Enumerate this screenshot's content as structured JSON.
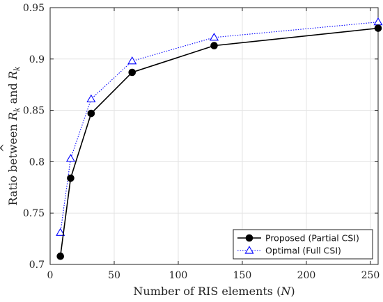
{
  "chart_data": {
    "type": "line",
    "xlabel": "Number of RIS elements (",
    "xlabel_var": "N",
    "xlabel_end": ")",
    "ylabel_parts": [
      "Ratio between ",
      "R",
      "k",
      " and ",
      "R",
      "k"
    ],
    "xlim": [
      0,
      256
    ],
    "ylim": [
      0.7,
      0.95
    ],
    "x_ticks": [
      0,
      50,
      100,
      150,
      200,
      250
    ],
    "y_ticks": [
      0.7,
      0.75,
      0.8,
      0.85,
      0.9,
      0.95
    ],
    "x_tick_labels": [
      "0",
      "50",
      "100",
      "150",
      "200",
      "250"
    ],
    "y_tick_labels": [
      "0.7",
      "0.75",
      "0.8",
      "0.85",
      "0.9",
      "0.95"
    ],
    "grid": true,
    "legend_position": "bottom-right",
    "series": [
      {
        "name": "Proposed (Partial CSI)",
        "color": "#000000",
        "marker": "circle",
        "linestyle": "solid",
        "x": [
          8,
          16,
          32,
          64,
          128,
          256
        ],
        "y": [
          0.708,
          0.784,
          0.847,
          0.887,
          0.913,
          0.93
        ]
      },
      {
        "name": "Optimal (Full CSI)",
        "color": "#0000ff",
        "marker": "triangle",
        "linestyle": "dotted",
        "x": [
          8,
          16,
          32,
          64,
          128,
          256
        ],
        "y": [
          0.731,
          0.803,
          0.861,
          0.898,
          0.921,
          0.936
        ]
      }
    ]
  }
}
